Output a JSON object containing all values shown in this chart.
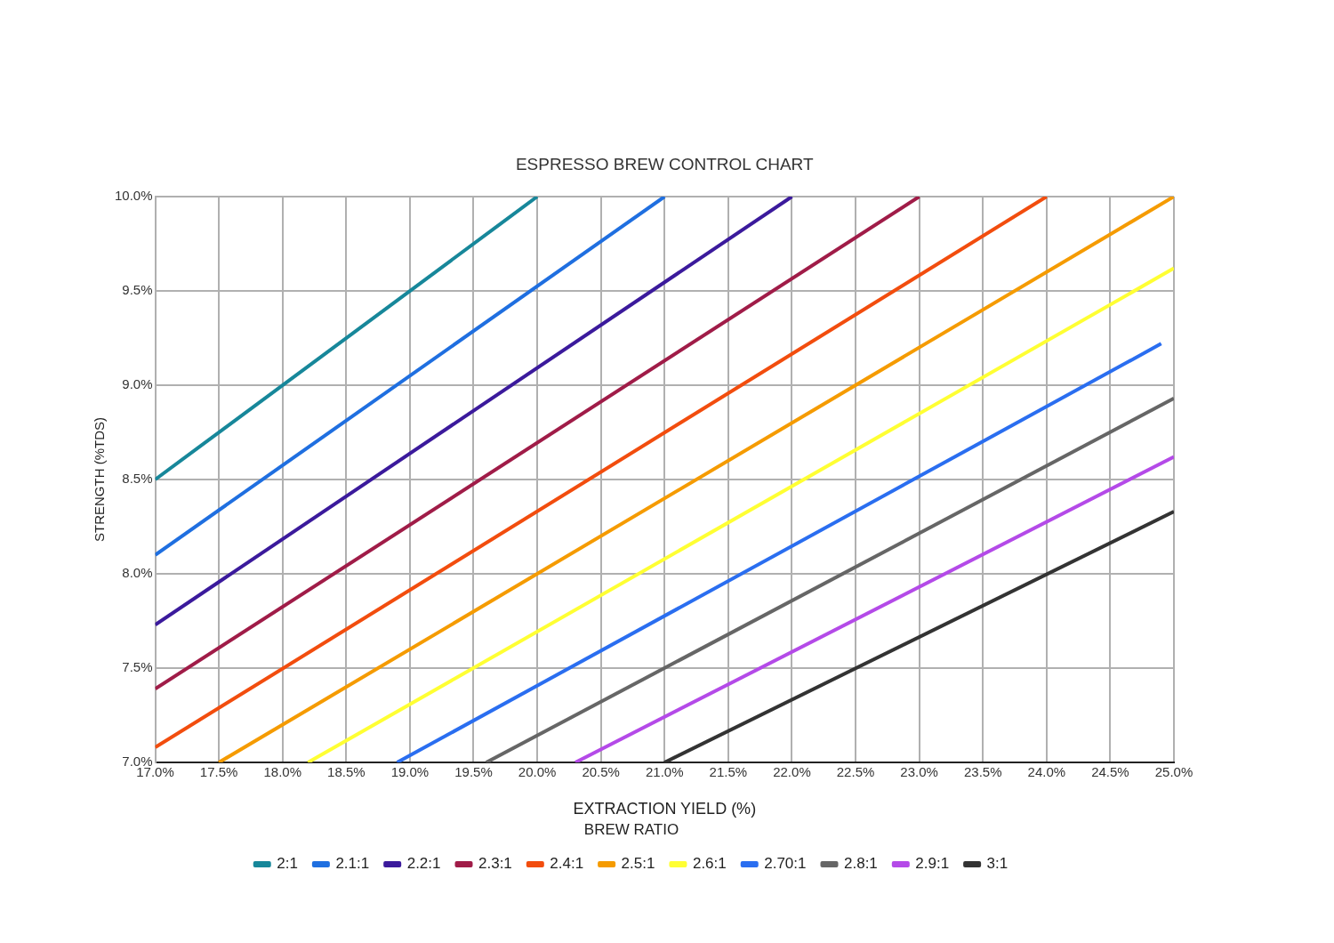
{
  "chart_data": {
    "type": "line",
    "title": "ESPRESSO BREW CONTROL CHART",
    "xlabel": "EXTRACTION YIELD (%)",
    "ylabel": "STRENGTH (%TDS)",
    "legend_title": "BREW RATIO",
    "legend": "bottom",
    "grid": true,
    "marker": "none",
    "line_style": "solid",
    "xlim": [
      17,
      25
    ],
    "ylim": [
      7,
      10
    ],
    "xticks": [
      {
        "value": 17,
        "label": "17.0%"
      },
      {
        "value": 17.5,
        "label": "17.5%"
      },
      {
        "value": 18,
        "label": "18.0%"
      },
      {
        "value": 18.5,
        "label": "18.5%"
      },
      {
        "value": 19,
        "label": "19.0%"
      },
      {
        "value": 19.5,
        "label": "19.5%"
      },
      {
        "value": 20,
        "label": "20.0%"
      },
      {
        "value": 20.5,
        "label": "20.5%"
      },
      {
        "value": 21,
        "label": "21.0%"
      },
      {
        "value": 21.5,
        "label": "21.5%"
      },
      {
        "value": 22,
        "label": "22.0%"
      },
      {
        "value": 22.5,
        "label": "22.5%"
      },
      {
        "value": 23,
        "label": "23.0%"
      },
      {
        "value": 23.5,
        "label": "23.5%"
      },
      {
        "value": 24,
        "label": "24.0%"
      },
      {
        "value": 24.5,
        "label": "24.5%"
      },
      {
        "value": 25,
        "label": "25.0%"
      }
    ],
    "yticks": [
      {
        "value": 7,
        "label": "7.0%"
      },
      {
        "value": 7.5,
        "label": "7.5%"
      },
      {
        "value": 8,
        "label": "8.0%"
      },
      {
        "value": 8.5,
        "label": "8.5%"
      },
      {
        "value": 9,
        "label": "9.0%"
      },
      {
        "value": 9.5,
        "label": "9.5%"
      },
      {
        "value": 10,
        "label": "10.0%"
      }
    ],
    "series": [
      {
        "name": "2:1",
        "color": "#17879a",
        "x": [
          17,
          20
        ],
        "values": [
          8.5,
          10
        ]
      },
      {
        "name": "2.1:1",
        "color": "#1f6fe0",
        "x": [
          17,
          21
        ],
        "values": [
          8.1,
          10
        ]
      },
      {
        "name": "2.2:1",
        "color": "#3b1a9c",
        "x": [
          17,
          22
        ],
        "values": [
          7.73,
          10
        ]
      },
      {
        "name": "2.3:1",
        "color": "#a01c48",
        "x": [
          17,
          23
        ],
        "values": [
          7.39,
          10
        ]
      },
      {
        "name": "2.4:1",
        "color": "#f24d0e",
        "x": [
          17,
          24
        ],
        "values": [
          7.08,
          10
        ]
      },
      {
        "name": "2.5:1",
        "color": "#f59b00",
        "x": [
          17.5,
          25
        ],
        "values": [
          7,
          10
        ]
      },
      {
        "name": "2.6:1",
        "color": "#ffff33",
        "x": [
          18.2,
          25
        ],
        "values": [
          7,
          9.62
        ]
      },
      {
        "name": "2.70:1",
        "color": "#2a6ef0",
        "x": [
          18.9,
          24.9
        ],
        "values": [
          7,
          9.22
        ]
      },
      {
        "name": "2.8:1",
        "color": "#666666",
        "x": [
          19.6,
          25
        ],
        "values": [
          7,
          8.93
        ]
      },
      {
        "name": "2.9:1",
        "color": "#b44ae8",
        "x": [
          20.3,
          25
        ],
        "values": [
          7,
          8.62
        ]
      },
      {
        "name": "3:1",
        "color": "#333333",
        "x": [
          21,
          25
        ],
        "values": [
          7,
          8.33
        ]
      }
    ]
  }
}
